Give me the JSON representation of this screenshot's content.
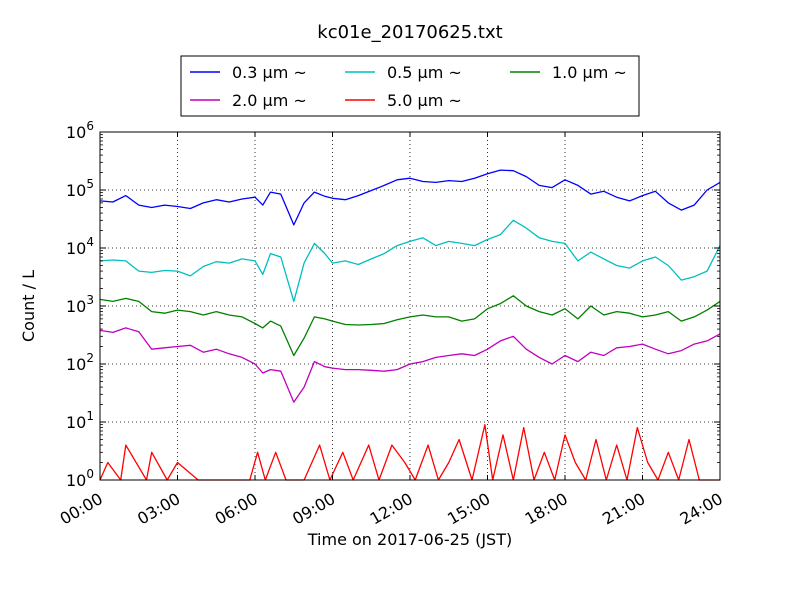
{
  "chart_data": {
    "type": "line",
    "title": "kc01e_20170625.txt",
    "xlabel": "Time on 2017-06-25 (JST)",
    "ylabel": "Count / L",
    "y_scale": "log",
    "xlim": [
      0,
      24
    ],
    "ylim": [
      1,
      1000000
    ],
    "x_unit": "hours",
    "xticks": [
      {
        "value": 0,
        "label": "00:00"
      },
      {
        "value": 3,
        "label": "03:00"
      },
      {
        "value": 6,
        "label": "06:00"
      },
      {
        "value": 9,
        "label": "09:00"
      },
      {
        "value": 12,
        "label": "12:00"
      },
      {
        "value": 15,
        "label": "15:00"
      },
      {
        "value": 18,
        "label": "18:00"
      },
      {
        "value": 21,
        "label": "21:00"
      },
      {
        "value": 24,
        "label": "24:00"
      }
    ],
    "yticks": [
      {
        "value": 1,
        "base": "10",
        "exp": "0"
      },
      {
        "value": 10,
        "base": "10",
        "exp": "1"
      },
      {
        "value": 100,
        "base": "10",
        "exp": "2"
      },
      {
        "value": 1000,
        "base": "10",
        "exp": "3"
      },
      {
        "value": 10000,
        "base": "10",
        "exp": "4"
      },
      {
        "value": 100000,
        "base": "10",
        "exp": "5"
      },
      {
        "value": 1000000,
        "base": "10",
        "exp": "6"
      }
    ],
    "grid": true,
    "legend_position": "top-center",
    "series": [
      {
        "name": "0.3 μm ~",
        "color": "#0000ff",
        "x": [
          0,
          0.5,
          1,
          1.5,
          2,
          2.5,
          3,
          3.5,
          4,
          4.5,
          5,
          5.5,
          6,
          6.3,
          6.6,
          7,
          7.5,
          7.9,
          8.3,
          8.7,
          9,
          9.5,
          10,
          10.5,
          11,
          11.5,
          12,
          12.5,
          13,
          13.5,
          14,
          14.5,
          15,
          15.5,
          16,
          16.5,
          17,
          17.5,
          18,
          18.5,
          19,
          19.5,
          20,
          20.5,
          21,
          21.5,
          22,
          22.5,
          23,
          23.5,
          24
        ],
        "y": [
          65000,
          62000,
          80000,
          55000,
          50000,
          55000,
          52000,
          48000,
          60000,
          68000,
          62000,
          70000,
          75000,
          55000,
          92000,
          85000,
          25000,
          60000,
          92000,
          78000,
          72000,
          68000,
          80000,
          98000,
          120000,
          150000,
          160000,
          140000,
          135000,
          145000,
          140000,
          160000,
          190000,
          220000,
          215000,
          170000,
          120000,
          110000,
          150000,
          120000,
          85000,
          95000,
          75000,
          65000,
          80000,
          95000,
          60000,
          45000,
          55000,
          100000,
          135000
        ]
      },
      {
        "name": "0.5 μm ~",
        "color": "#00bfbf",
        "x": [
          0,
          0.5,
          1,
          1.5,
          2,
          2.5,
          3,
          3.5,
          4,
          4.5,
          5,
          5.5,
          6,
          6.3,
          6.6,
          7,
          7.5,
          7.9,
          8.3,
          8.7,
          9,
          9.5,
          10,
          10.5,
          11,
          11.5,
          12,
          12.5,
          13,
          13.5,
          14,
          14.5,
          15,
          15.5,
          16,
          16.5,
          17,
          17.5,
          18,
          18.5,
          19,
          19.5,
          20,
          20.5,
          21,
          21.5,
          22,
          22.5,
          23,
          23.5,
          24
        ],
        "y": [
          6000,
          6200,
          6000,
          4000,
          3800,
          4100,
          4000,
          3300,
          4800,
          5800,
          5500,
          6500,
          6000,
          3500,
          8000,
          7000,
          1200,
          5500,
          12000,
          8000,
          5500,
          6000,
          5200,
          6500,
          8000,
          11000,
          13000,
          15000,
          11000,
          13000,
          12000,
          11000,
          14000,
          17000,
          30000,
          22000,
          15000,
          13000,
          12000,
          6000,
          8500,
          6500,
          5000,
          4500,
          6000,
          7000,
          5000,
          2800,
          3200,
          4000,
          11000
        ]
      },
      {
        "name": "1.0 μm ~",
        "color": "#008000",
        "x": [
          0,
          0.5,
          1,
          1.5,
          2,
          2.5,
          3,
          3.5,
          4,
          4.5,
          5,
          5.5,
          6,
          6.3,
          6.6,
          7,
          7.5,
          7.9,
          8.3,
          8.7,
          9,
          9.5,
          10,
          10.5,
          11,
          11.5,
          12,
          12.5,
          13,
          13.5,
          14,
          14.5,
          15,
          15.5,
          16,
          16.5,
          17,
          17.5,
          18,
          18.5,
          19,
          19.5,
          20,
          20.5,
          21,
          21.5,
          22,
          22.5,
          23,
          23.5,
          24
        ],
        "y": [
          1300,
          1200,
          1350,
          1200,
          800,
          750,
          850,
          800,
          700,
          800,
          700,
          650,
          500,
          420,
          550,
          450,
          140,
          280,
          650,
          600,
          550,
          480,
          470,
          480,
          500,
          580,
          650,
          700,
          650,
          650,
          550,
          600,
          900,
          1100,
          1500,
          1000,
          800,
          700,
          900,
          600,
          1000,
          700,
          800,
          750,
          650,
          700,
          800,
          550,
          650,
          850,
          1200
        ]
      },
      {
        "name": "2.0 μm ~",
        "color": "#bf00bf",
        "x": [
          0,
          0.5,
          1,
          1.5,
          2,
          2.5,
          3,
          3.5,
          4,
          4.5,
          5,
          5.5,
          6,
          6.3,
          6.6,
          7,
          7.5,
          7.9,
          8.3,
          8.7,
          9,
          9.5,
          10,
          10.5,
          11,
          11.5,
          12,
          12.5,
          13,
          13.5,
          14,
          14.5,
          15,
          15.5,
          16,
          16.5,
          17,
          17.5,
          18,
          18.5,
          19,
          19.5,
          20,
          20.5,
          21,
          21.5,
          22,
          22.5,
          23,
          23.5,
          24
        ],
        "y": [
          380,
          350,
          420,
          360,
          180,
          190,
          200,
          210,
          160,
          180,
          150,
          130,
          100,
          70,
          80,
          75,
          22,
          40,
          110,
          90,
          85,
          80,
          80,
          78,
          75,
          80,
          100,
          110,
          130,
          140,
          150,
          140,
          180,
          250,
          300,
          180,
          130,
          100,
          140,
          110,
          160,
          140,
          190,
          200,
          220,
          180,
          150,
          170,
          220,
          250,
          330
        ]
      },
      {
        "name": "5.0 μm ~",
        "color": "#ff0000",
        "x": [
          0,
          0.3,
          0.8,
          1,
          1.8,
          2,
          2.6,
          3,
          3.8,
          4.2,
          5,
          5.8,
          6.1,
          6.4,
          6.8,
          7.2,
          7.6,
          7.9,
          8.5,
          8.9,
          9.4,
          9.8,
          10.4,
          10.8,
          11.3,
          11.8,
          12.2,
          12.7,
          13.1,
          13.5,
          13.9,
          14.4,
          14.9,
          15.2,
          15.6,
          16,
          16.4,
          16.8,
          17.2,
          17.6,
          18,
          18.4,
          18.8,
          19.2,
          19.6,
          20,
          20.4,
          20.8,
          21.2,
          21.6,
          22,
          22.4,
          22.8,
          23.2,
          23.6,
          24
        ],
        "y": [
          1,
          2,
          1,
          4,
          1,
          3,
          1,
          2,
          1,
          1,
          1,
          1,
          3,
          1,
          3,
          1,
          1,
          1,
          4,
          1,
          3,
          1,
          4,
          1,
          4,
          2,
          1,
          4,
          1,
          2,
          5,
          1,
          9,
          1,
          6,
          1,
          8,
          1,
          3,
          1,
          6,
          2,
          1,
          5,
          1,
          4,
          1,
          8,
          2,
          1,
          3,
          1,
          5,
          1,
          1,
          1
        ]
      }
    ]
  }
}
